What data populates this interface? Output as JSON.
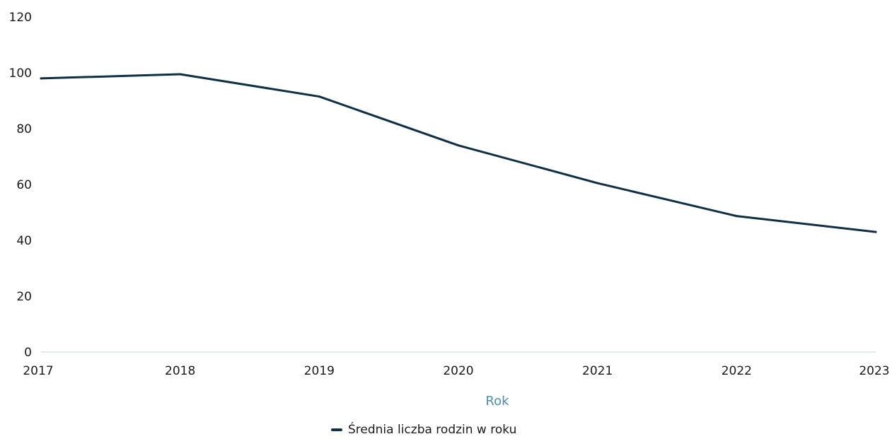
{
  "chart_data": {
    "type": "line",
    "x": [
      "2017",
      "2018",
      "2019",
      "2020",
      "2021",
      "2022",
      "2023"
    ],
    "series": [
      {
        "name": "Średnia liczba rodzin w roku",
        "values": [
          98,
          99.5,
          91.5,
          74,
          60.5,
          48.7,
          43
        ],
        "color": "#0f2f45"
      }
    ],
    "xlabel": "Rok",
    "ylabel": "",
    "ylim": [
      0,
      120
    ],
    "yticks": [
      0,
      20,
      40,
      60,
      80,
      100,
      120
    ],
    "grid": false,
    "legend_position": "bottom",
    "colors": {
      "line": "#0f2f45",
      "xlabel": "#4a90a8",
      "baseline": "#c8d4dc",
      "text": "#1a1a1a"
    }
  }
}
